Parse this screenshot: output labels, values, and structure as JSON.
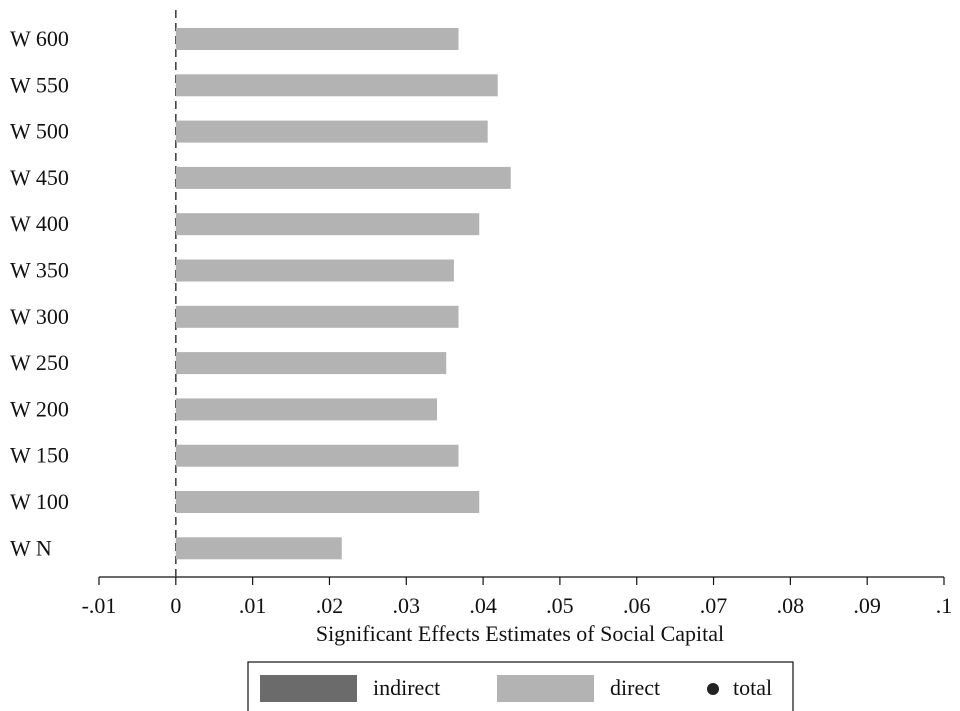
{
  "chart_data": {
    "type": "barh",
    "xlabel": "Significant Effects Estimates of Social Capital",
    "categories": [
      "W 600",
      "W 550",
      "W 500",
      "W 450",
      "W 400",
      "W 350",
      "W 300",
      "W 250",
      "W 200",
      "W 150",
      "W 100",
      "W N"
    ],
    "series": [
      {
        "name": "indirect",
        "color": "#6b6b6b",
        "values": [
          null,
          null,
          null,
          null,
          null,
          null,
          null,
          null,
          null,
          null,
          null,
          null
        ]
      },
      {
        "name": "direct",
        "color": "#b3b3b3",
        "values": [
          0.0368,
          0.0419,
          0.0406,
          0.0436,
          0.0395,
          0.0362,
          0.0368,
          0.0352,
          0.034,
          0.0368,
          0.0395,
          0.0216
        ]
      },
      {
        "name": "total",
        "color": "#222222",
        "marker": "dot",
        "values": [
          null,
          null,
          null,
          null,
          null,
          null,
          null,
          null,
          null,
          null,
          null,
          null
        ]
      }
    ],
    "xlim": [
      -0.01,
      0.1
    ],
    "xticks": [
      {
        "value": -0.01,
        "label": "-.01"
      },
      0,
      {
        "value": 0.01,
        "label": ".01"
      },
      {
        "value": 0.02,
        "label": ".02"
      },
      {
        "value": 0.03,
        "label": ".03"
      },
      {
        "value": 0.04,
        "label": ".04"
      },
      {
        "value": 0.05,
        "label": ".05"
      },
      {
        "value": 0.06,
        "label": ".06"
      },
      {
        "value": 0.07,
        "label": ".07"
      },
      {
        "value": 0.08,
        "label": ".08"
      },
      {
        "value": 0.09,
        "label": ".09"
      },
      {
        "value": 0.1,
        "label": ".1"
      }
    ],
    "reference_line": 0
  }
}
